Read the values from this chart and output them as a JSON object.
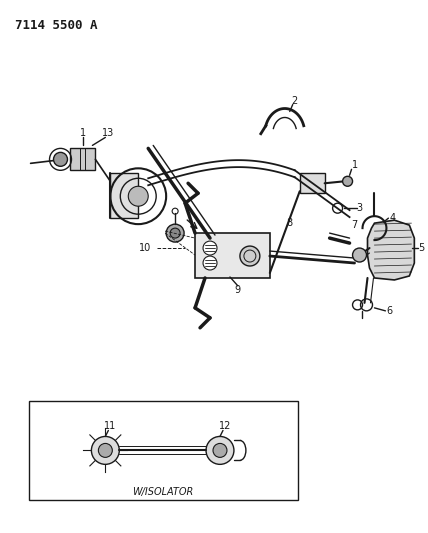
{
  "title": "7114 5500 A",
  "background_color": "#ffffff",
  "line_color": "#1a1a1a",
  "figsize": [
    4.28,
    5.33
  ],
  "dpi": 100
}
